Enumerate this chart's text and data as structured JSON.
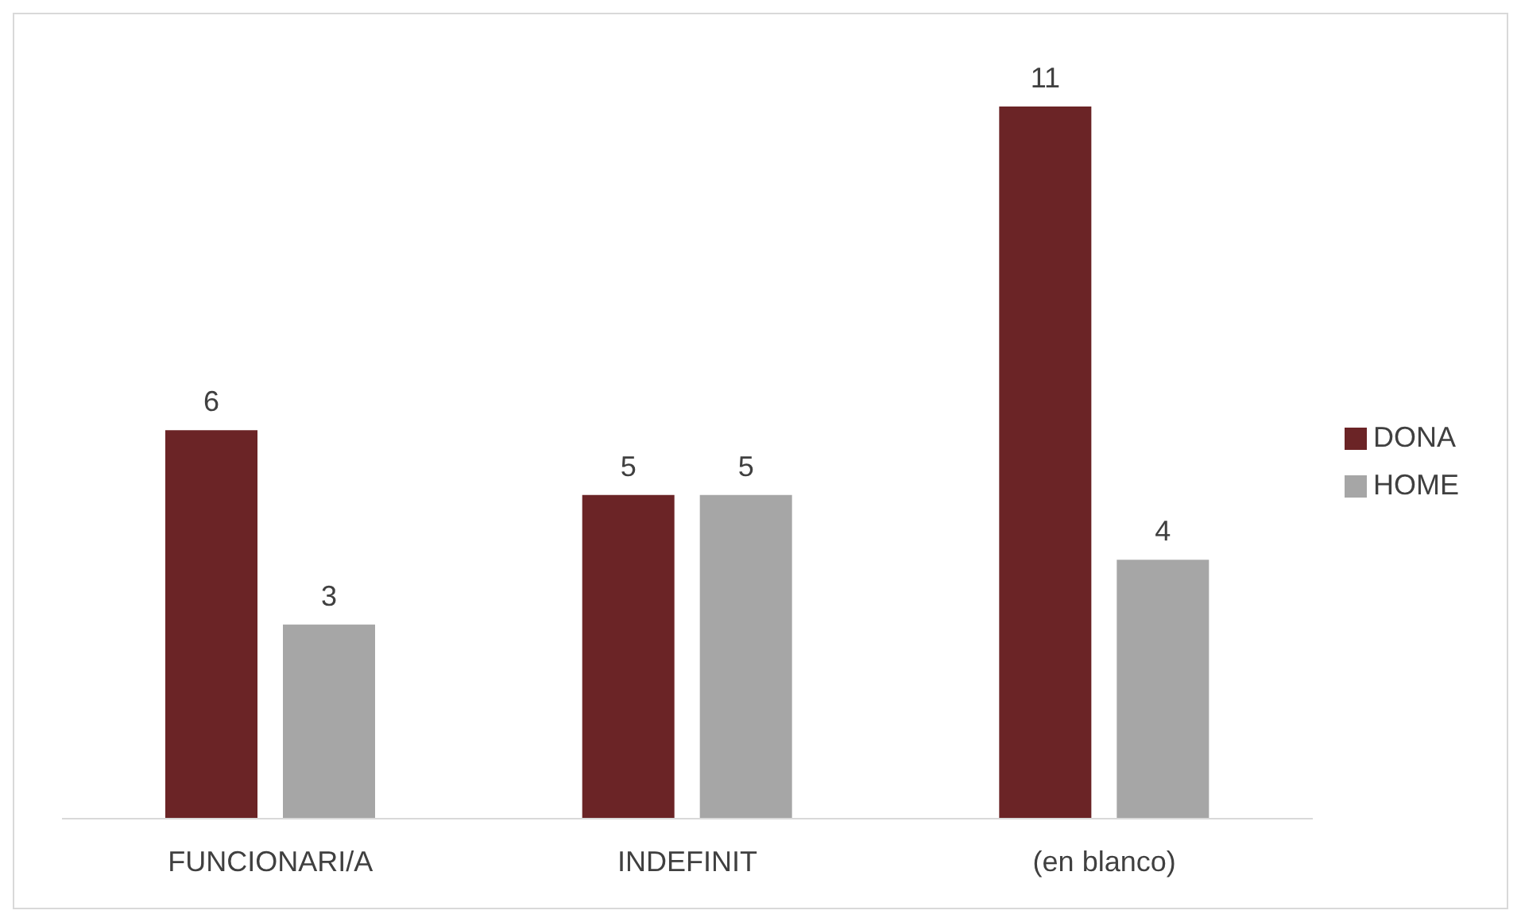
{
  "chart_data": {
    "type": "bar",
    "categories": [
      "FUNCIONARI/A",
      "INDEFINIT",
      "(en blanco)"
    ],
    "series": [
      {
        "name": "DONA",
        "color": "#6b2426",
        "values": [
          6,
          5,
          11
        ]
      },
      {
        "name": "HOME",
        "color": "#a6a6a6",
        "values": [
          3,
          5,
          4
        ]
      }
    ],
    "data_labels": true,
    "legend": "right",
    "grid": false
  }
}
